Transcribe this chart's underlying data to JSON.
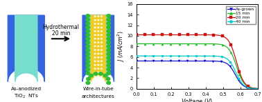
{
  "chart_xlim": [
    0,
    0.7
  ],
  "chart_ylim": [
    0,
    16
  ],
  "yticks": [
    0,
    2,
    4,
    6,
    8,
    10,
    12,
    14,
    16
  ],
  "xticks": [
    0.0,
    0.1,
    0.2,
    0.3,
    0.4,
    0.5,
    0.6,
    0.7
  ],
  "curves": [
    {
      "label": "As-grown",
      "color": "#1111cc",
      "jsc": 5.25,
      "voc": 0.655,
      "knee": 0.87,
      "marker": "v"
    },
    {
      "label": "15 min",
      "color": "#22bb22",
      "jsc": 8.5,
      "voc": 0.662,
      "knee": 0.87,
      "marker": "^"
    },
    {
      "label": "20 min",
      "color": "#cc1111",
      "jsc": 10.2,
      "voc": 0.662,
      "knee": 0.87,
      "marker": "s"
    },
    {
      "label": "40 min",
      "color": "#00cccc",
      "jsc": 6.2,
      "voc": 0.658,
      "knee": 0.87,
      "marker": "o"
    }
  ],
  "tube_outer_color": "#3366dd",
  "tube_inner_color": "#77ddcc",
  "wire_color": "#eecc22",
  "np_color": "#33bb33",
  "np_dot_color": "#ffffff"
}
